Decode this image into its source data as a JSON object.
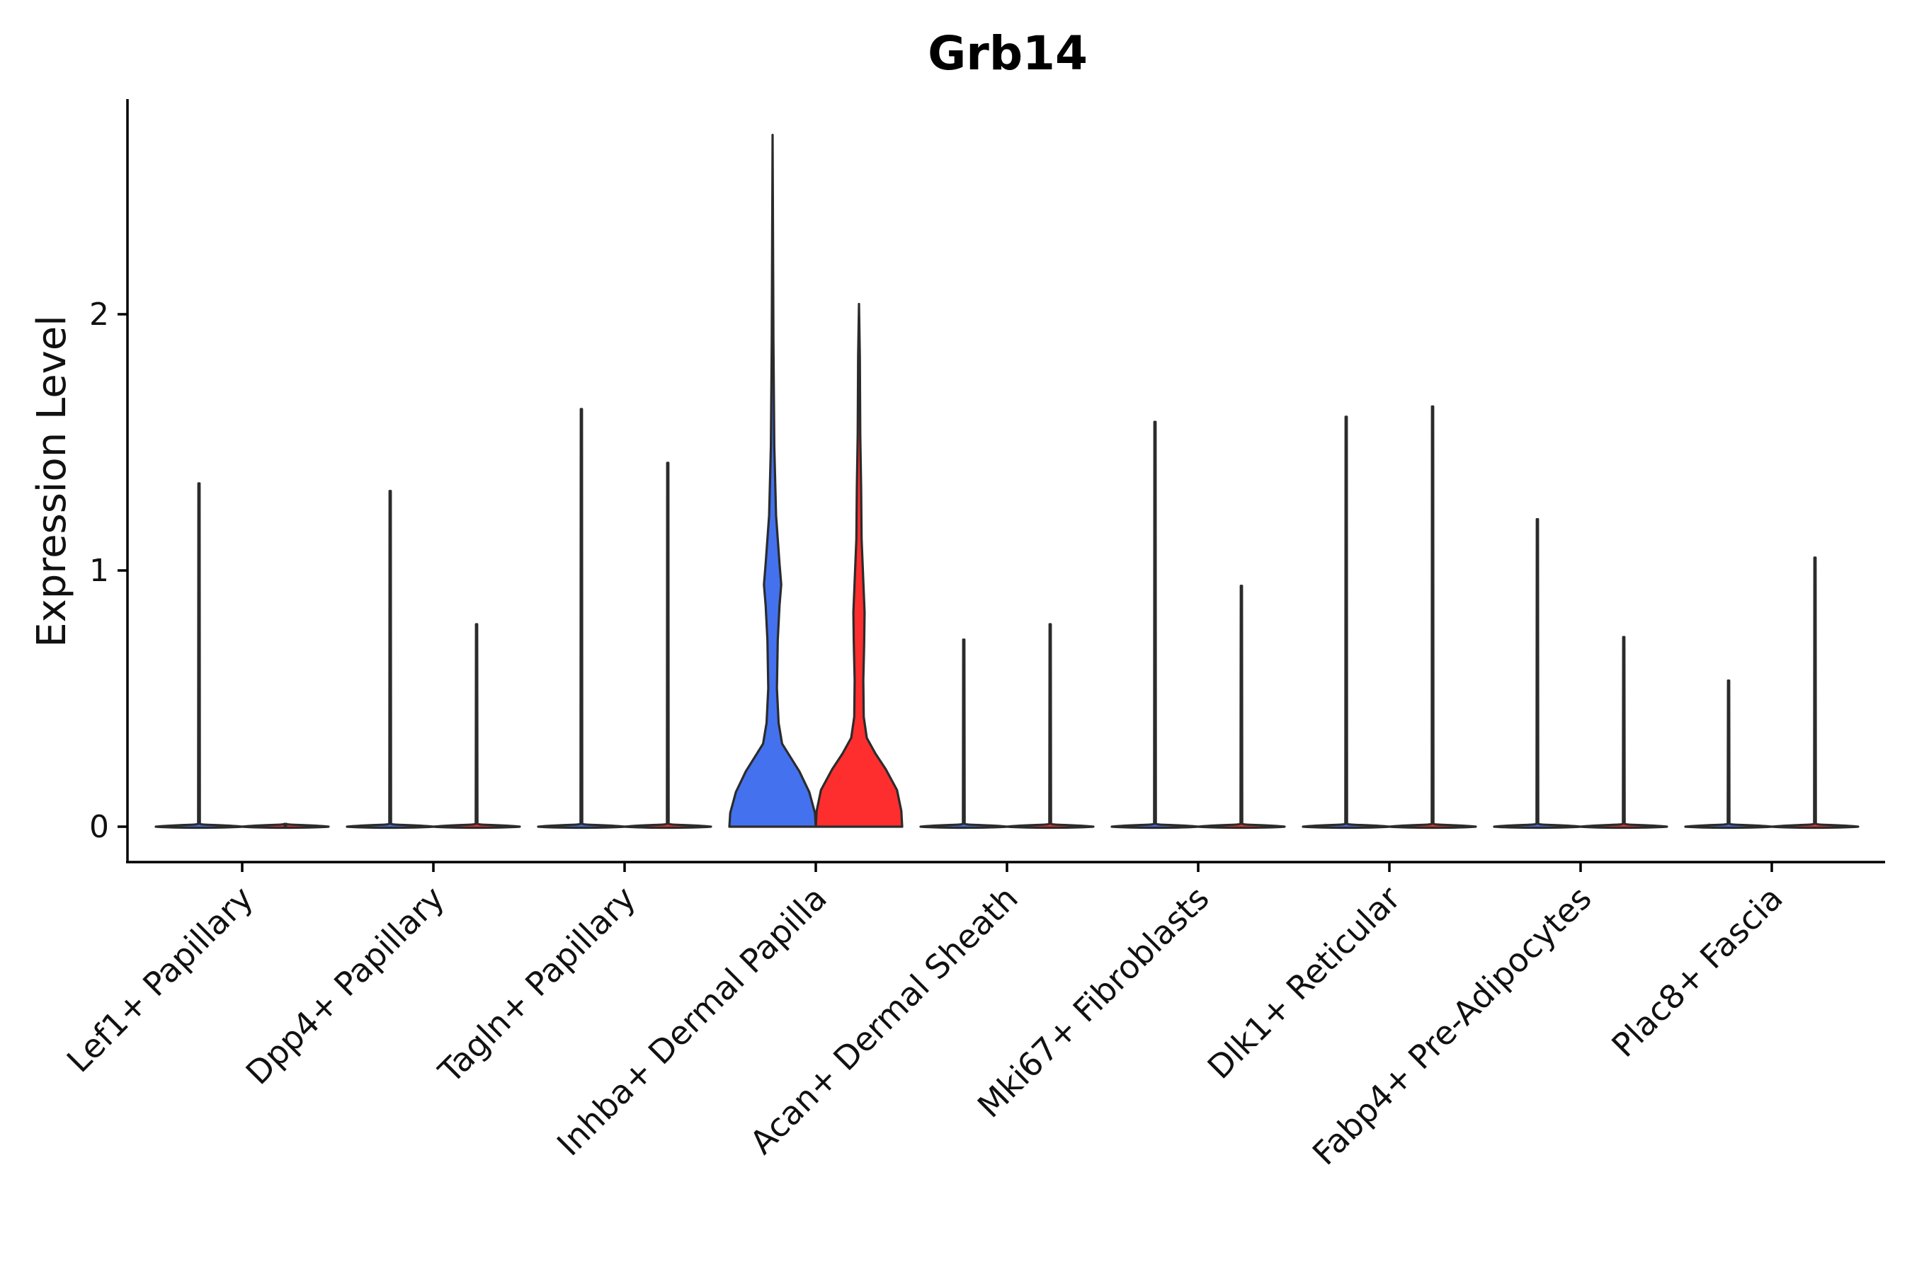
{
  "chart_data": {
    "type": "violin",
    "title": "Grb14",
    "ylabel": "Expression Level",
    "xlabel": "",
    "ylim": [
      -0.14,
      2.84
    ],
    "yticks": [
      0,
      1,
      2
    ],
    "grid": false,
    "legend": "none",
    "colors": {
      "group_a": "#4472ee",
      "group_b": "#ff2e2e",
      "outline": "#2b2b2b"
    },
    "categories": [
      "Lef1+ Papillary",
      "Dpp4+ Papillary",
      "Tagln+ Papillary",
      "Inhba+ Dermal Papilla",
      "Acan+ Dermal Sheath",
      "Mki67+ Fibroblasts",
      "Dlk1+ Reticular",
      "Fabp4+ Pre-Adipocytes",
      "Plac8+ Fascia"
    ],
    "series": [
      {
        "max_values": [
          1.34,
          1.31,
          1.63,
          2.7,
          0.73,
          1.58,
          1.6,
          1.2,
          0.57
        ]
      },
      {
        "max_values": [
          0.0,
          0.79,
          1.42,
          2.04,
          0.79,
          0.94,
          1.64,
          0.74,
          1.05
        ]
      }
    ]
  }
}
